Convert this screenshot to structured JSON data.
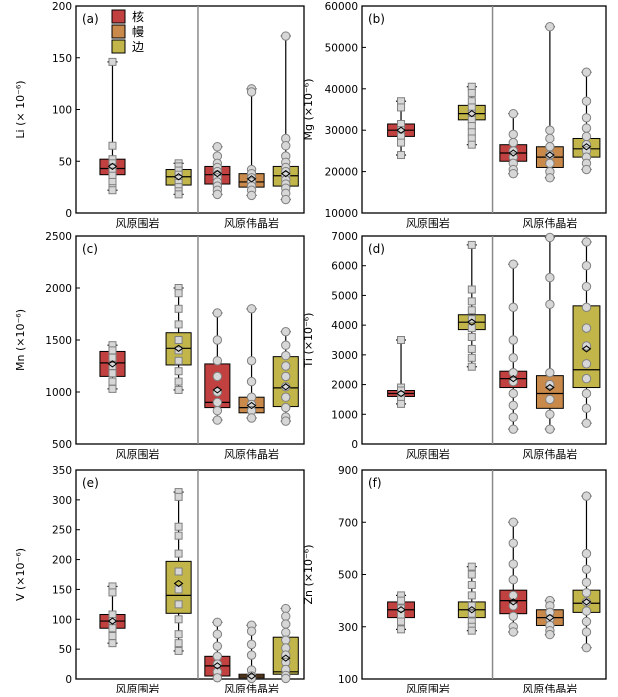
{
  "legend": [
    {
      "label": "核",
      "color": "#c0413f"
    },
    {
      "label": "幔",
      "color": "#c8894a"
    },
    {
      "label": "边",
      "color": "#c2b64a"
    }
  ],
  "group_labels": [
    "风原围岩",
    "风原伟晶岩"
  ],
  "chart_data": [
    {
      "type": "box",
      "panel": "(a)",
      "ylabel": "Li (× 10⁻⁶)",
      "ylim": [
        0,
        200
      ],
      "yticks": [
        0,
        50,
        100,
        150,
        200
      ],
      "series": [
        {
          "name": "风原围岩-核",
          "zone": 0,
          "whisker": [
            22,
            146
          ],
          "box": [
            37,
            52
          ],
          "median": 43,
          "mean": 45,
          "points": [
            146,
            65,
            52,
            48,
            44,
            40,
            36,
            30,
            24,
            22
          ],
          "marker": "square"
        },
        {
          "name": "风原围岩-边",
          "zone": 2,
          "whisker": [
            18,
            48
          ],
          "box": [
            27,
            42
          ],
          "median": 35,
          "mean": 35,
          "points": [
            48,
            45,
            41,
            37,
            33,
            29,
            25,
            21,
            18
          ],
          "marker": "square"
        },
        {
          "name": "风原伟晶岩-核",
          "zone": 0,
          "whisker": [
            18,
            64
          ],
          "box": [
            28,
            45
          ],
          "median": 37,
          "mean": 38,
          "points": [
            64,
            55,
            48,
            44,
            40,
            37,
            34,
            30,
            26,
            22,
            18
          ],
          "marker": "circle"
        },
        {
          "name": "风原伟晶岩-幔",
          "zone": 1,
          "whisker": [
            17,
            120
          ],
          "box": [
            25,
            38
          ],
          "median": 30,
          "mean": 33,
          "points": [
            120,
            117,
            42,
            38,
            34,
            30,
            26,
            22,
            17
          ],
          "marker": "circle"
        },
        {
          "name": "风原伟晶岩-边",
          "zone": 2,
          "whisker": [
            13,
            171
          ],
          "box": [
            26,
            45
          ],
          "median": 36,
          "mean": 38,
          "points": [
            171,
            72,
            65,
            55,
            49,
            44,
            40,
            36,
            32,
            28,
            24,
            19,
            13
          ],
          "marker": "circle"
        }
      ]
    },
    {
      "type": "box",
      "panel": "(b)",
      "ylabel": "Mg (×10⁻⁶)",
      "ylim": [
        10000,
        60000
      ],
      "yticks": [
        10000,
        20000,
        30000,
        40000,
        50000,
        60000
      ],
      "series": [
        {
          "name": "风原围岩-核",
          "zone": 0,
          "whisker": [
            24000,
            37000
          ],
          "box": [
            28500,
            31500
          ],
          "median": 30000,
          "mean": 30000,
          "points": [
            37000,
            35500,
            31500,
            30000,
            28500,
            27000,
            24000
          ],
          "marker": "square"
        },
        {
          "name": "风原围岩-边",
          "zone": 2,
          "whisker": [
            26500,
            40500
          ],
          "box": [
            32500,
            36000
          ],
          "median": 34000,
          "mean": 34000,
          "points": [
            40500,
            39000,
            37000,
            35500,
            34000,
            32500,
            31000,
            29500,
            28000,
            26500
          ],
          "marker": "square"
        },
        {
          "name": "风原伟晶岩-核",
          "zone": 0,
          "whisker": [
            19500,
            34000
          ],
          "box": [
            22500,
            26500
          ],
          "median": 24500,
          "mean": 24500,
          "points": [
            34000,
            29000,
            27000,
            25000,
            23500,
            22000,
            20500,
            19500
          ],
          "marker": "circle"
        },
        {
          "name": "风原伟晶岩-幔",
          "zone": 1,
          "whisker": [
            18500,
            55000
          ],
          "box": [
            21000,
            26000
          ],
          "median": 23500,
          "mean": 24000,
          "points": [
            55000,
            30000,
            28000,
            26000,
            24000,
            22000,
            20000,
            18500
          ],
          "marker": "circle"
        },
        {
          "name": "风原伟晶岩-边",
          "zone": 2,
          "whisker": [
            20500,
            44000
          ],
          "box": [
            23500,
            28000
          ],
          "median": 25500,
          "mean": 26000,
          "points": [
            44000,
            37000,
            33000,
            30500,
            28500,
            26500,
            25000,
            23500,
            22000,
            20500
          ],
          "marker": "circle"
        }
      ]
    },
    {
      "type": "box",
      "panel": "(c)",
      "ylabel": "Mn (×10⁻⁶)",
      "ylim": [
        500,
        2500
      ],
      "yticks": [
        500,
        1000,
        1500,
        2000,
        2500
      ],
      "series": [
        {
          "name": "风原围岩-核",
          "zone": 0,
          "whisker": [
            1030,
            1450
          ],
          "box": [
            1150,
            1390
          ],
          "median": 1280,
          "mean": 1270,
          "points": [
            1450,
            1400,
            1330,
            1250,
            1180,
            1100,
            1030
          ],
          "marker": "square"
        },
        {
          "name": "风原围岩-边",
          "zone": 2,
          "whisker": [
            1020,
            2000
          ],
          "box": [
            1260,
            1570
          ],
          "median": 1420,
          "mean": 1420,
          "points": [
            2000,
            1950,
            1800,
            1650,
            1500,
            1400,
            1300,
            1200,
            1100,
            1020
          ],
          "marker": "square"
        },
        {
          "name": "风原伟晶岩-核",
          "zone": 0,
          "whisker": [
            730,
            1760
          ],
          "box": [
            850,
            1270
          ],
          "median": 900,
          "mean": 1020,
          "points": [
            1760,
            1500,
            1300,
            1150,
            1000,
            900,
            820,
            730
          ],
          "marker": "circle"
        },
        {
          "name": "风原伟晶岩-幔",
          "zone": 1,
          "whisker": [
            750,
            1800
          ],
          "box": [
            800,
            950
          ],
          "median": 850,
          "mean": 870,
          "points": [
            1800,
            1300,
            1100,
            950,
            880,
            820,
            750
          ],
          "marker": "circle"
        },
        {
          "name": "风原伟晶岩-边",
          "zone": 2,
          "whisker": [
            720,
            1580
          ],
          "box": [
            860,
            1340
          ],
          "median": 1040,
          "mean": 1050,
          "points": [
            1580,
            1450,
            1350,
            1250,
            1150,
            1050,
            950,
            850,
            760,
            720
          ],
          "marker": "circle"
        }
      ]
    },
    {
      "type": "box",
      "panel": "(d)",
      "ylabel": "Ti (×10⁻⁶)",
      "ylim": [
        0,
        7000
      ],
      "yticks": [
        0,
        1000,
        2000,
        3000,
        4000,
        5000,
        6000,
        7000
      ],
      "series": [
        {
          "name": "风原围岩-核",
          "zone": 0,
          "whisker": [
            1350,
            3500
          ],
          "box": [
            1600,
            1800
          ],
          "median": 1700,
          "mean": 1700,
          "points": [
            3500,
            1900,
            1800,
            1650,
            1500,
            1350
          ],
          "marker": "square"
        },
        {
          "name": "风原围岩-边",
          "zone": 2,
          "whisker": [
            2600,
            6700
          ],
          "box": [
            3850,
            4350
          ],
          "median": 4100,
          "mean": 4100,
          "points": [
            6700,
            5200,
            4800,
            4500,
            4200,
            3900,
            3600,
            3200,
            2900,
            2600
          ],
          "marker": "square"
        },
        {
          "name": "风原伟晶岩-核",
          "zone": 0,
          "whisker": [
            500,
            6050
          ],
          "box": [
            1900,
            2450
          ],
          "median": 2200,
          "mean": 2200,
          "points": [
            6050,
            4600,
            3500,
            2900,
            2400,
            2100,
            1700,
            1300,
            900,
            500
          ],
          "marker": "circle"
        },
        {
          "name": "风原伟晶岩-幔",
          "zone": 1,
          "whisker": [
            500,
            6950
          ],
          "box": [
            1200,
            2300
          ],
          "median": 1700,
          "mean": 1900,
          "points": [
            6950,
            5600,
            4700,
            2400,
            2000,
            1500,
            1000,
            500
          ],
          "marker": "circle"
        },
        {
          "name": "风原伟晶岩-边",
          "zone": 2,
          "whisker": [
            700,
            6800
          ],
          "box": [
            1900,
            4650
          ],
          "median": 2500,
          "mean": 3200,
          "points": [
            6800,
            6000,
            5300,
            4600,
            3900,
            3300,
            2700,
            2200,
            1700,
            1200,
            700
          ],
          "marker": "circle"
        }
      ]
    },
    {
      "type": "box",
      "panel": "(e)",
      "ylabel": "V (×10⁻⁶)",
      "ylim": [
        0,
        350
      ],
      "yticks": [
        0,
        50,
        100,
        150,
        200,
        250,
        300,
        350
      ],
      "series": [
        {
          "name": "风原围岩-核",
          "zone": 0,
          "whisker": [
            60,
            155
          ],
          "box": [
            85,
            108
          ],
          "median": 97,
          "mean": 97,
          "points": [
            155,
            145,
            108,
            97,
            85,
            72,
            60
          ],
          "marker": "square"
        },
        {
          "name": "风原围岩-边",
          "zone": 2,
          "whisker": [
            47,
            313
          ],
          "box": [
            110,
            197
          ],
          "median": 140,
          "mean": 160,
          "points": [
            313,
            305,
            255,
            240,
            210,
            180,
            150,
            125,
            100,
            75,
            60,
            47
          ],
          "marker": "square"
        },
        {
          "name": "风原伟晶岩-核",
          "zone": 0,
          "whisker": [
            0,
            95
          ],
          "box": [
            5,
            38
          ],
          "median": 22,
          "mean": 22,
          "points": [
            95,
            75,
            55,
            38,
            25,
            12,
            2
          ],
          "marker": "circle"
        },
        {
          "name": "风原伟晶岩-幔",
          "zone": 1,
          "whisker": [
            0,
            90
          ],
          "box": [
            2,
            8
          ],
          "median": 5,
          "mean": 5,
          "points": [
            90,
            80,
            58,
            40,
            15,
            5,
            1
          ],
          "marker": "circle"
        },
        {
          "name": "风原伟晶岩-边",
          "zone": 2,
          "whisker": [
            0,
            118
          ],
          "box": [
            8,
            70
          ],
          "median": 12,
          "mean": 35,
          "points": [
            118,
            105,
            92,
            78,
            65,
            52,
            40,
            28,
            16,
            6,
            1
          ],
          "marker": "circle"
        }
      ]
    },
    {
      "type": "box",
      "panel": "(f)",
      "ylabel": "Zn (×10⁻⁶)",
      "ylim": [
        100,
        900
      ],
      "yticks": [
        100,
        300,
        500,
        700,
        900
      ],
      "series": [
        {
          "name": "风原围岩-核",
          "zone": 0,
          "whisker": [
            290,
            420
          ],
          "box": [
            335,
            395
          ],
          "median": 365,
          "mean": 365,
          "points": [
            420,
            400,
            370,
            345,
            320,
            290
          ],
          "marker": "square"
        },
        {
          "name": "风原围岩-边",
          "zone": 2,
          "whisker": [
            285,
            530
          ],
          "box": [
            335,
            395
          ],
          "median": 365,
          "mean": 365,
          "points": [
            530,
            500,
            460,
            420,
            380,
            350,
            320,
            300,
            285
          ],
          "marker": "square"
        },
        {
          "name": "风原伟晶岩-核",
          "zone": 0,
          "whisker": [
            280,
            700
          ],
          "box": [
            350,
            440
          ],
          "median": 400,
          "mean": 395,
          "points": [
            700,
            620,
            540,
            480,
            420,
            380,
            340,
            300,
            280
          ],
          "marker": "circle"
        },
        {
          "name": "风原伟晶岩-幔",
          "zone": 1,
          "whisker": [
            270,
            400
          ],
          "box": [
            305,
            365
          ],
          "median": 335,
          "mean": 335,
          "points": [
            400,
            380,
            355,
            330,
            305,
            285,
            270
          ],
          "marker": "circle"
        },
        {
          "name": "风原伟晶岩-边",
          "zone": 2,
          "whisker": [
            220,
            800
          ],
          "box": [
            355,
            440
          ],
          "median": 390,
          "mean": 395,
          "points": [
            800,
            580,
            520,
            470,
            430,
            395,
            360,
            320,
            280,
            220
          ],
          "marker": "circle"
        }
      ]
    }
  ]
}
